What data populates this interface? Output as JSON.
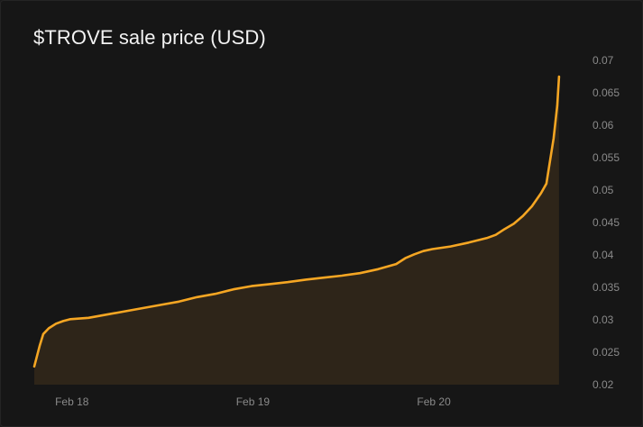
{
  "title": "$TROVE sale price (USD)",
  "colors": {
    "line": "#f5a623",
    "area": "#2e2519",
    "background": "#161616",
    "tick": "#8a8a8a",
    "title": "#f2f2f2"
  },
  "chart_data": {
    "type": "area",
    "title": "$TROVE sale price (USD)",
    "xlabel": "",
    "ylabel": "",
    "x_axis": "time (days)",
    "x_ticks": [
      {
        "label": "Feb 18",
        "x": 18.0
      },
      {
        "label": "Feb 19",
        "x": 19.0
      },
      {
        "label": "Feb 20",
        "x": 20.0
      }
    ],
    "xlim": [
      17.9,
      20.93
    ],
    "y_ticks": [
      {
        "label": "0.07",
        "y": 0.07
      },
      {
        "label": "0.065",
        "y": 0.065
      },
      {
        "label": "0.06",
        "y": 0.06
      },
      {
        "label": "0.055",
        "y": 0.055
      },
      {
        "label": "0.05",
        "y": 0.05
      },
      {
        "label": "0.045",
        "y": 0.045
      },
      {
        "label": "0.04",
        "y": 0.04
      },
      {
        "label": "0.035",
        "y": 0.035
      },
      {
        "label": "0.03",
        "y": 0.03
      },
      {
        "label": "0.025",
        "y": 0.025
      },
      {
        "label": "0.02",
        "y": 0.02
      }
    ],
    "ylim": [
      0.02,
      0.07
    ],
    "y_axis_position": "right",
    "grid": false,
    "legend": "none",
    "series": [
      {
        "points": [
          [
            17.9,
            0.0228
          ],
          [
            17.93,
            0.026
          ],
          [
            17.95,
            0.0278
          ],
          [
            17.98,
            0.0287
          ],
          [
            18.02,
            0.0294
          ],
          [
            18.06,
            0.0298
          ],
          [
            18.1,
            0.0301
          ],
          [
            18.2,
            0.0303
          ],
          [
            18.3,
            0.0308
          ],
          [
            18.4,
            0.0313
          ],
          [
            18.5,
            0.0318
          ],
          [
            18.6,
            0.0323
          ],
          [
            18.7,
            0.0328
          ],
          [
            18.8,
            0.0335
          ],
          [
            18.9,
            0.034
          ],
          [
            19.0,
            0.0347
          ],
          [
            19.1,
            0.0352
          ],
          [
            19.2,
            0.0355
          ],
          [
            19.3,
            0.0358
          ],
          [
            19.4,
            0.0362
          ],
          [
            19.5,
            0.0365
          ],
          [
            19.6,
            0.0368
          ],
          [
            19.7,
            0.0372
          ],
          [
            19.8,
            0.0378
          ],
          [
            19.9,
            0.0386
          ],
          [
            19.95,
            0.0395
          ],
          [
            20.0,
            0.0401
          ],
          [
            20.05,
            0.0406
          ],
          [
            20.1,
            0.0409
          ],
          [
            20.2,
            0.0413
          ],
          [
            20.3,
            0.0419
          ],
          [
            20.4,
            0.0426
          ],
          [
            20.45,
            0.0431
          ],
          [
            20.5,
            0.044
          ],
          [
            20.55,
            0.0448
          ],
          [
            20.6,
            0.046
          ],
          [
            20.65,
            0.0475
          ],
          [
            20.7,
            0.0495
          ],
          [
            20.73,
            0.051
          ],
          [
            20.75,
            0.0545
          ],
          [
            20.77,
            0.058
          ],
          [
            20.79,
            0.063
          ],
          [
            20.8,
            0.0675
          ]
        ]
      }
    ]
  }
}
